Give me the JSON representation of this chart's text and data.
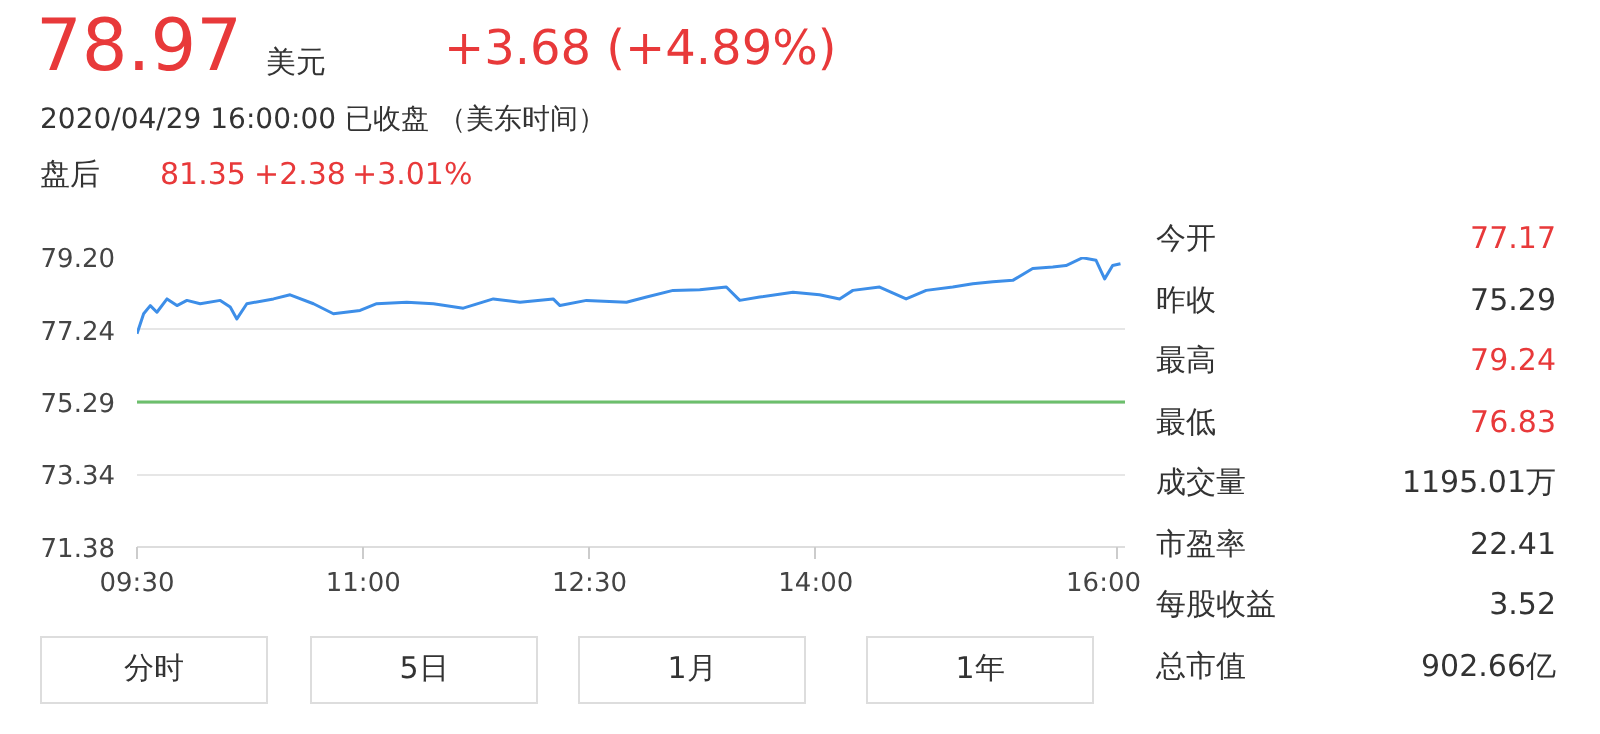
{
  "chart_data": {
    "type": "line",
    "title": "78.97",
    "subtitle": "2020/04/29 16:00:00   已收盘 （美东时间）",
    "x": [
      9.5,
      9.544,
      9.588,
      9.632,
      9.699,
      9.765,
      9.831,
      9.919,
      10.052,
      10.118,
      10.162,
      10.228,
      10.405,
      10.515,
      10.67,
      10.802,
      10.979,
      11.089,
      11.288,
      11.465,
      11.663,
      11.862,
      12.039,
      12.259,
      12.304,
      12.48,
      12.745,
      12.878,
      13.054,
      13.231,
      13.407,
      13.496,
      13.628,
      13.849,
      14.025,
      14.158,
      14.246,
      14.423,
      14.599,
      14.732,
      14.908,
      15.041,
      15.174,
      15.306,
      15.438,
      15.571,
      15.659,
      15.769,
      15.858,
      15.915,
      15.968,
      16.02
    ],
    "series": [
      {
        "color": "#3d8ee8",
        "values": [
          77.13,
          77.67,
          77.89,
          77.71,
          78.07,
          77.89,
          78.03,
          77.94,
          78.03,
          77.85,
          77.53,
          77.94,
          78.07,
          78.18,
          77.94,
          77.67,
          77.76,
          77.94,
          77.98,
          77.94,
          77.82,
          78.07,
          77.98,
          78.07,
          77.89,
          78.03,
          77.98,
          78.12,
          78.3,
          78.32,
          78.39,
          78.03,
          78.12,
          78.25,
          78.18,
          78.07,
          78.3,
          78.39,
          78.07,
          78.3,
          78.39,
          78.48,
          78.53,
          78.57,
          78.89,
          78.93,
          78.97,
          79.18,
          79.11,
          78.61,
          78.97,
          79.02
        ]
      }
    ],
    "xlim": [
      9.5,
      16.05
    ],
    "xticks": [
      {
        "value": 9.5,
        "label": "09:30"
      },
      {
        "value": 11,
        "label": "11:00"
      },
      {
        "value": 12.5,
        "label": "12:30"
      },
      {
        "value": 14,
        "label": "14:00"
      },
      {
        "value": 16,
        "label": "16:00"
      }
    ],
    "ylim": [
      71.38,
      79.2
    ],
    "yticks": [
      {
        "value": 71.38,
        "label": "71.38"
      },
      {
        "value": 73.34,
        "label": "73.34"
      },
      {
        "value": 75.29,
        "label": "75.29"
      },
      {
        "value": 77.24,
        "label": "77.24"
      },
      {
        "value": 79.2,
        "label": "79.20"
      }
    ],
    "ref_lines": [
      {
        "axis": "y",
        "value": 75.29,
        "color": "#6cbf6c"
      }
    ],
    "grid": "y",
    "marker": "none",
    "line_style": "solid",
    "annotations": [
      "美元",
      "+3.68 (+4.89%)",
      "盘后",
      "81.35",
      "+2.38",
      "+3.01%",
      "今开",
      "77.17",
      "昨收",
      "75.29",
      "最高",
      "79.24",
      "最低",
      "76.83",
      "成交量",
      "1195.01万",
      "市盈率",
      "22.41",
      "每股收益",
      "3.52",
      "总市值",
      "902.66亿",
      "分时",
      "5日",
      "1月",
      "1年"
    ]
  }
}
